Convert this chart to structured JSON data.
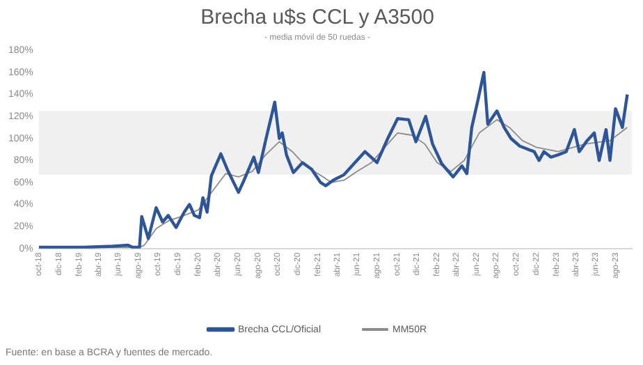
{
  "chart_data": {
    "type": "line",
    "title": "Brecha u$s CCL y A3500",
    "subtitle": "- media móvil de 50 ruedas -",
    "annotations": [
      "Fuente: en base a BCRA y fuentes de mercado."
    ],
    "xlim": [
      "2018-10-01",
      "2023-09-20"
    ],
    "xticks": [
      {
        "value": "2018-10",
        "label": "oct-18"
      },
      {
        "value": "2018-12",
        "label": "dic-18"
      },
      {
        "value": "2019-02",
        "label": "feb-19"
      },
      {
        "value": "2019-04",
        "label": "abr-19"
      },
      {
        "value": "2019-06",
        "label": "jun-19"
      },
      {
        "value": "2019-08",
        "label": "ago-19"
      },
      {
        "value": "2019-10",
        "label": "oct-19"
      },
      {
        "value": "2019-12",
        "label": "dic-19"
      },
      {
        "value": "2020-02",
        "label": "feb-20"
      },
      {
        "value": "2020-04",
        "label": "abr-20"
      },
      {
        "value": "2020-06",
        "label": "jun-20"
      },
      {
        "value": "2020-08",
        "label": "ago-20"
      },
      {
        "value": "2020-10",
        "label": "oct-20"
      },
      {
        "value": "2020-12",
        "label": "dic-20"
      },
      {
        "value": "2021-02",
        "label": "feb-21"
      },
      {
        "value": "2021-04",
        "label": "abr-21"
      },
      {
        "value": "2021-06",
        "label": "jun-21"
      },
      {
        "value": "2021-08",
        "label": "ago-21"
      },
      {
        "value": "2021-10",
        "label": "oct-21"
      },
      {
        "value": "2021-12",
        "label": "dic-21"
      },
      {
        "value": "2022-02",
        "label": "feb-22"
      },
      {
        "value": "2022-04",
        "label": "abr-22"
      },
      {
        "value": "2022-06",
        "label": "jun-22"
      },
      {
        "value": "2022-08",
        "label": "ago-22"
      },
      {
        "value": "2022-10",
        "label": "oct-22"
      },
      {
        "value": "2022-12",
        "label": "dic-22"
      },
      {
        "value": "2023-02",
        "label": "feb-23"
      },
      {
        "value": "2023-04",
        "label": "abr-23"
      },
      {
        "value": "2023-06",
        "label": "jun-23"
      },
      {
        "value": "2023-08",
        "label": "ago-23"
      }
    ],
    "ylim": [
      0,
      180
    ],
    "yticks": [
      {
        "value": 0,
        "label": "0%"
      },
      {
        "value": 20,
        "label": "20%"
      },
      {
        "value": 40,
        "label": "40%"
      },
      {
        "value": 60,
        "label": "60%"
      },
      {
        "value": 80,
        "label": "80%"
      },
      {
        "value": 100,
        "label": "100%"
      },
      {
        "value": 120,
        "label": "120%"
      },
      {
        "value": 140,
        "label": "140%"
      },
      {
        "value": 160,
        "label": "160%"
      },
      {
        "value": 180,
        "label": "180%"
      }
    ],
    "grid": false,
    "legend": "bottom",
    "marker": "none",
    "bands": [
      {
        "axis": "y",
        "from": 67,
        "to": 125,
        "color": "#f0f0f0"
      }
    ],
    "series": [
      {
        "name": "Brecha CCL/Oficial",
        "color": "#2e5597",
        "x": [
          "2018-10-01",
          "2019-02-15",
          "2019-05-15",
          "2019-07-01",
          "2019-07-15",
          "2019-08-05",
          "2019-08-12",
          "2019-09-01",
          "2019-09-25",
          "2019-10-15",
          "2019-11-01",
          "2019-11-25",
          "2019-12-20",
          "2020-01-05",
          "2020-01-20",
          "2020-02-05",
          "2020-02-15",
          "2020-02-28",
          "2020-03-12",
          "2020-04-10",
          "2020-05-01",
          "2020-06-03",
          "2020-06-20",
          "2020-07-20",
          "2020-08-03",
          "2020-08-25",
          "2020-09-22",
          "2020-10-06",
          "2020-10-15",
          "2020-10-28",
          "2020-11-18",
          "2020-12-16",
          "2021-01-13",
          "2021-02-09",
          "2021-02-25",
          "2021-03-20",
          "2021-04-22",
          "2021-06-25",
          "2021-08-01",
          "2021-09-03",
          "2021-10-03",
          "2021-11-06",
          "2021-11-28",
          "2021-12-28",
          "2022-01-18",
          "2022-02-15",
          "2022-03-22",
          "2022-04-18",
          "2022-05-03",
          "2022-05-18",
          "2022-06-06",
          "2022-06-24",
          "2022-07-06",
          "2022-08-03",
          "2022-08-25",
          "2022-09-15",
          "2022-10-12",
          "2022-11-25",
          "2022-12-10",
          "2022-12-25",
          "2023-01-15",
          "2023-02-06",
          "2023-03-03",
          "2023-03-28",
          "2023-04-12",
          "2023-05-06",
          "2023-05-28",
          "2023-06-12",
          "2023-07-03",
          "2023-07-15",
          "2023-08-01",
          "2023-08-22",
          "2023-09-06"
        ],
        "values": [
          1,
          1,
          2,
          3,
          1,
          1,
          29,
          9,
          37,
          24,
          30,
          19,
          33,
          40,
          30,
          28,
          46,
          33,
          66,
          86,
          71,
          51,
          62,
          83,
          69,
          98,
          133,
          100,
          105,
          85,
          69,
          78,
          72,
          60,
          57,
          62,
          67,
          88,
          78,
          100,
          118,
          117,
          97,
          120,
          95,
          77,
          65,
          75,
          68,
          110,
          135,
          160,
          113,
          125,
          110,
          100,
          93,
          88,
          80,
          88,
          83,
          85,
          88,
          108,
          88,
          98,
          105,
          80,
          108,
          80,
          127,
          110,
          140
        ]
      },
      {
        "name": "MM50R",
        "color": "#8c8c8c",
        "x": [
          "2018-10-01",
          "2019-08-05",
          "2019-08-20",
          "2019-09-25",
          "2019-11-01",
          "2019-12-20",
          "2020-02-01",
          "2020-03-10",
          "2020-04-25",
          "2020-06-03",
          "2020-07-15",
          "2020-08-25",
          "2020-10-06",
          "2020-11-15",
          "2020-12-25",
          "2021-02-01",
          "2021-03-15",
          "2021-04-22",
          "2021-06-01",
          "2021-07-15",
          "2021-08-25",
          "2021-10-03",
          "2021-11-15",
          "2021-12-25",
          "2022-02-01",
          "2022-03-15",
          "2022-04-25",
          "2022-06-10",
          "2022-08-03",
          "2022-09-10",
          "2022-10-20",
          "2022-12-01",
          "2023-02-06",
          "2023-05-01",
          "2023-07-15",
          "2023-09-06"
        ],
        "values": [
          1,
          1,
          3,
          18,
          25,
          30,
          35,
          50,
          68,
          65,
          70,
          85,
          97,
          88,
          75,
          68,
          60,
          62,
          70,
          78,
          92,
          105,
          103,
          95,
          78,
          70,
          80,
          105,
          117,
          110,
          98,
          92,
          88,
          95,
          98,
          110
        ]
      }
    ]
  }
}
